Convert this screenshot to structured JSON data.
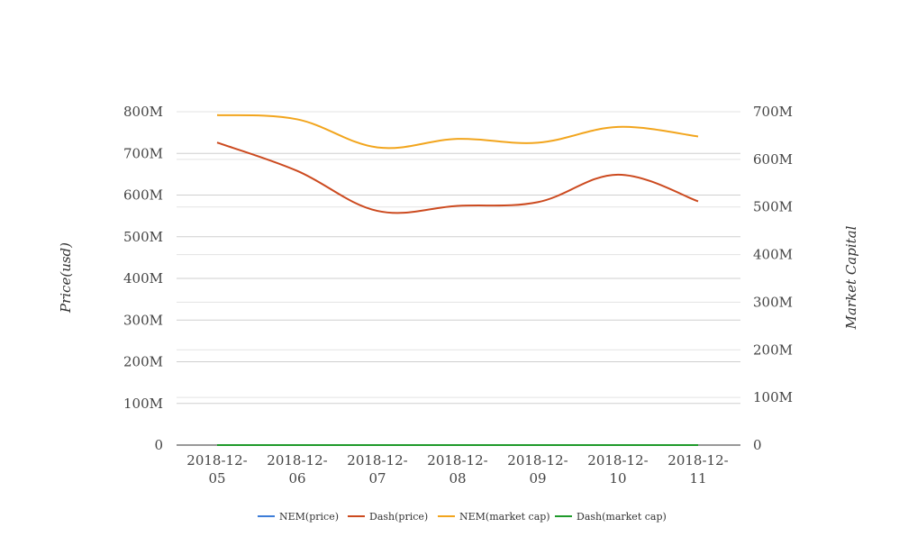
{
  "chart_data": {
    "type": "line",
    "categories": [
      "2018-12-05",
      "2018-12-06",
      "2018-12-07",
      "2018-12-08",
      "2018-12-09",
      "2018-12-10",
      "2018-12-11"
    ],
    "category_lines": [
      [
        "2018-12-",
        "05"
      ],
      [
        "2018-12-",
        "06"
      ],
      [
        "2018-12-",
        "07"
      ],
      [
        "2018-12-",
        "08"
      ],
      [
        "2018-12-",
        "09"
      ],
      [
        "2018-12-",
        "10"
      ],
      [
        "2018-12-",
        "11"
      ]
    ],
    "ylabel": "Price(usd)",
    "y2label": "Market Capital",
    "ylim": [
      0,
      800000000
    ],
    "y2lim": [
      0,
      700000000
    ],
    "yticks": [
      0,
      100000000,
      200000000,
      300000000,
      400000000,
      500000000,
      600000000,
      700000000,
      800000000
    ],
    "y2ticks": [
      0,
      100000000,
      200000000,
      300000000,
      400000000,
      500000000,
      600000000,
      700000000
    ],
    "ytick_labels": [
      "0",
      "100M",
      "200M",
      "300M",
      "400M",
      "500M",
      "600M",
      "700M",
      "800M"
    ],
    "y2tick_labels": [
      "0",
      "100M",
      "200M",
      "300M",
      "400M",
      "500M",
      "600M",
      "700M"
    ],
    "grid": true,
    "legend_position": "bottom",
    "series": [
      {
        "name": "NEM(price)",
        "axis": "left",
        "color": "#3d7dd8",
        "values": [
          0.09,
          0.08,
          0.07,
          0.07,
          0.07,
          0.08,
          0.07
        ]
      },
      {
        "name": "Dash(price)",
        "axis": "left",
        "color": "#cc4a1f",
        "values": [
          726000000,
          658000000,
          562000000,
          574000000,
          583000000,
          649000000,
          585000000
        ]
      },
      {
        "name": "NEM(market cap)",
        "axis": "right",
        "color": "#f2a51d",
        "values": [
          693000000,
          684000000,
          625000000,
          643000000,
          635000000,
          668000000,
          648000000
        ]
      },
      {
        "name": "Dash(market cap)",
        "axis": "right",
        "color": "#1f9a2b",
        "values": [
          0.5,
          0.5,
          0.5,
          0.5,
          0.5,
          0.5,
          0.5
        ]
      }
    ]
  }
}
